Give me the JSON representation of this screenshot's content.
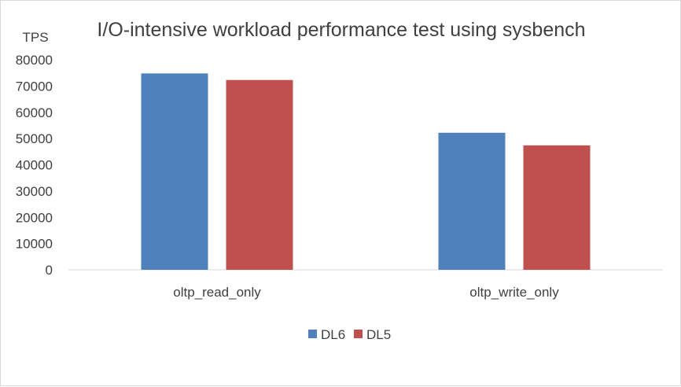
{
  "chart_data": {
    "type": "bar",
    "title": "I/O-intensive workload performance test using sysbench",
    "ylabel": "TPS",
    "xlabel": "",
    "categories": [
      "oltp_read_only",
      "oltp_write_only"
    ],
    "series": [
      {
        "name": "DL6",
        "color": "#4f81bd",
        "values": [
          74800,
          52200
        ]
      },
      {
        "name": "DL5",
        "color": "#c0504d",
        "values": [
          72300,
          47400
        ]
      }
    ],
    "ylim": [
      0,
      80000
    ],
    "yticks": [
      "0",
      "10000",
      "20000",
      "30000",
      "40000",
      "50000",
      "60000",
      "70000",
      "80000"
    ],
    "grid": false,
    "legend_position": "bottom"
  }
}
